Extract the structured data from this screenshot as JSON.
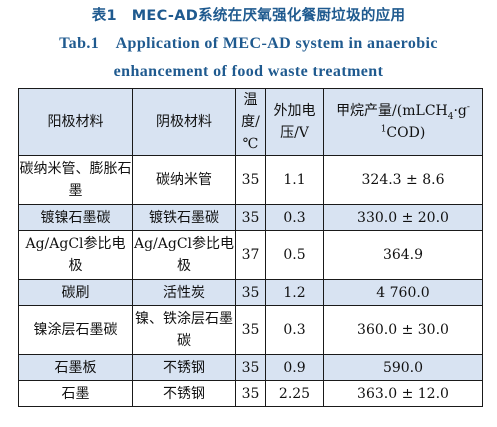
{
  "caption": {
    "cn": "表1　MEC-AD系统在厌氧强化餐厨垃圾的应用",
    "en_line1": "Tab.1　Application of MEC-AD system in anaerobic",
    "en_line2": "enhancement of food waste treatment"
  },
  "headers": {
    "anode": "阳极材料",
    "cathode": "阴极材料",
    "temp": "温度/℃",
    "voltage": "外加电压/V",
    "methane_prefix": "甲烷产量/(mLCH",
    "methane_sub": "4",
    "methane_mid": "·g",
    "methane_sup": "-1",
    "methane_suffix": "COD)"
  },
  "rows": [
    {
      "anode": "碳纳米管、膨胀石墨",
      "cathode": "碳纳米管",
      "temp": "35",
      "voltage": "1.1",
      "methane": "324.3 ± 8.6"
    },
    {
      "anode": "镀镍石墨碳",
      "cathode": "镀铁石墨碳",
      "temp": "35",
      "voltage": "0.3",
      "methane": "330.0 ± 20.0"
    },
    {
      "anode": "Ag/AgCl参比电极",
      "cathode": "Ag/AgCl参比电极",
      "temp": "37",
      "voltage": "0.5",
      "methane": "364.9"
    },
    {
      "anode": "碳刷",
      "cathode": "活性炭",
      "temp": "35",
      "voltage": "1.2",
      "methane": "4 760.0"
    },
    {
      "anode": "镍涂层石墨碳",
      "cathode": "镍、铁涂层石墨碳",
      "temp": "35",
      "voltage": "0.3",
      "methane": "360.0 ± 30.0"
    },
    {
      "anode": "石墨板",
      "cathode": "不锈钢",
      "temp": "35",
      "voltage": "0.9",
      "methane": "590.0"
    },
    {
      "anode": "石墨",
      "cathode": "不锈钢",
      "temp": "35",
      "voltage": "2.25",
      "methane": "363.0 ± 12.0"
    }
  ]
}
